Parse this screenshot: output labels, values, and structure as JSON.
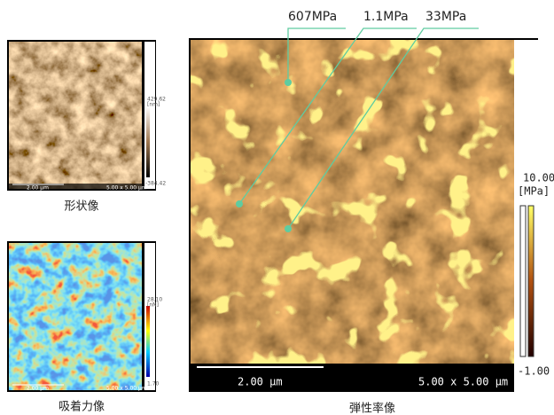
{
  "topography": {
    "max": "429.62",
    "unit": "[nm]",
    "min": "-384.42",
    "scale_bar": "2.00 µm",
    "size": "5.00 x 5.00 µm",
    "caption": "形状像"
  },
  "adhesion": {
    "max": "28.10",
    "unit": "[nN]",
    "min": "1.70",
    "scale_bar": "2.00 µm",
    "size": "5.00 x 5.00 µm",
    "caption": "吸着力像"
  },
  "elasticity": {
    "callouts": [
      "607MPa",
      "1.1MPa",
      "33MPa"
    ],
    "max": "10.00",
    "unit": "[MPa]",
    "min": "-1.00",
    "scale_bar": "2.00 µm",
    "size": "5.00 x 5.00 µm",
    "caption": "弾性率像"
  }
}
